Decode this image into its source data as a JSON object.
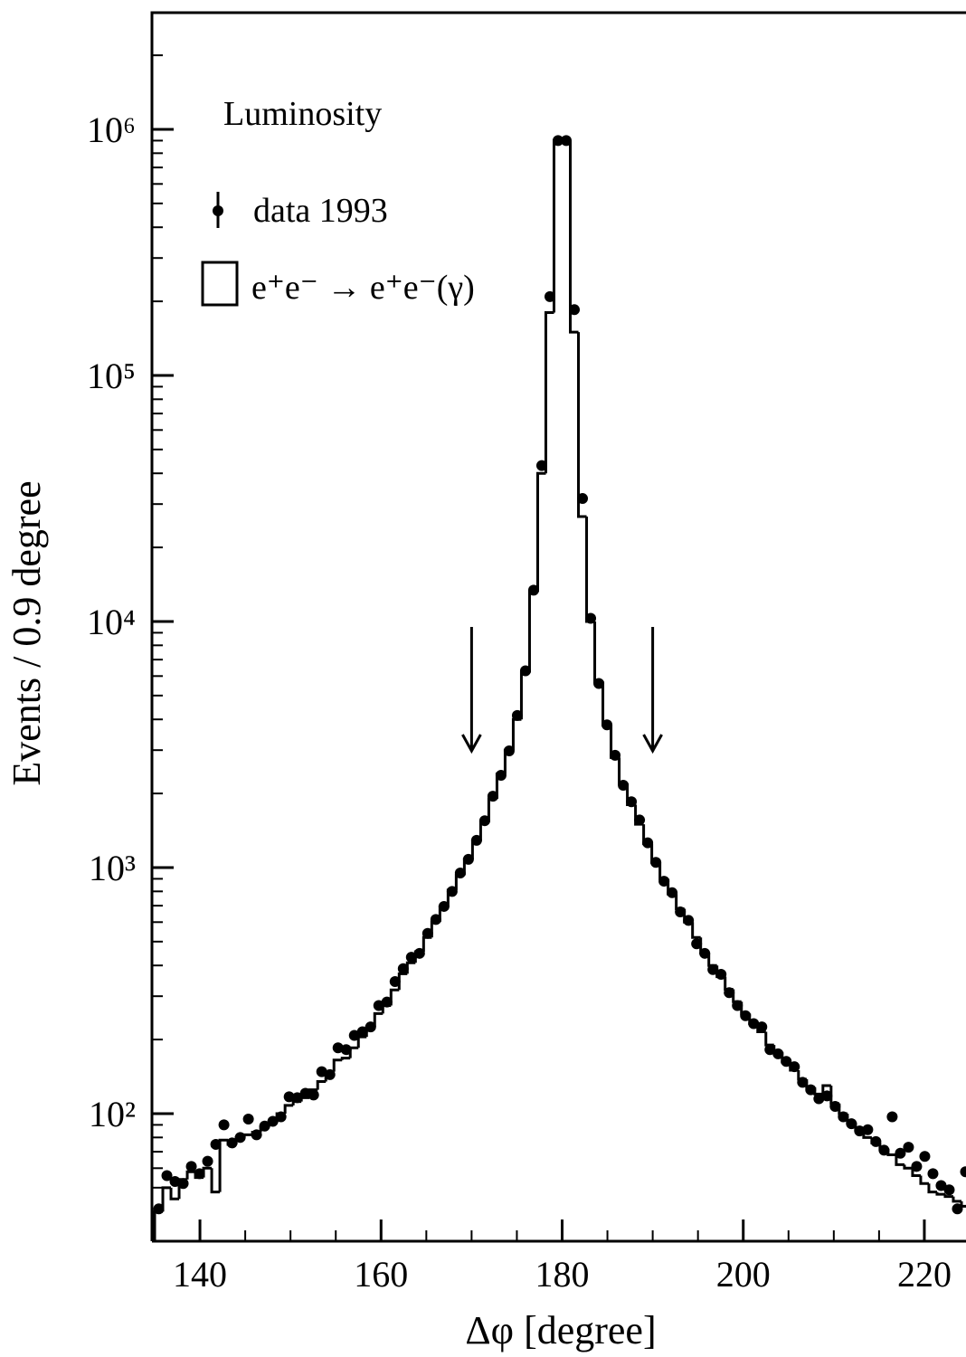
{
  "chart_data": {
    "type": "histogram",
    "y_label": "Events / 0.9 degree",
    "x_label": "Δφ [degree]",
    "legend_title": "Luminosity",
    "log_y": true,
    "xlim": [
      134.7,
      224.6
    ],
    "ylim": [
      30.3,
      2980000
    ],
    "xticks": [
      140,
      160,
      180,
      200,
      220
    ],
    "xminorticks": [
      135,
      145,
      150,
      155,
      165,
      170,
      175,
      185,
      190,
      195,
      205,
      210,
      215
    ],
    "yticks": [
      {
        "value": 100,
        "label": "10²"
      },
      {
        "value": 1000,
        "label": "10³"
      },
      {
        "value": 10000,
        "label": "10⁴"
      },
      {
        "value": 100000,
        "label": "10⁵"
      },
      {
        "value": 1000000,
        "label": "10⁶"
      }
    ],
    "yminorticks": [
      40,
      50,
      60,
      70,
      80,
      90,
      200,
      300,
      400,
      500,
      600,
      700,
      800,
      900,
      2000,
      3000,
      4000,
      5000,
      6000,
      7000,
      8000,
      9000,
      20000,
      30000,
      40000,
      50000,
      60000,
      70000,
      80000,
      90000,
      200000,
      300000,
      400000,
      500000,
      600000,
      700000,
      800000,
      900000,
      2000000
    ],
    "cut_arrows": [
      170,
      190
    ],
    "bins": [
      135,
      135.9,
      136.8,
      137.7,
      138.6,
      139.5,
      140.4,
      141.3,
      142.2,
      143.1,
      144,
      144.9,
      145.8,
      146.7,
      147.6,
      148.5,
      149.4,
      150.3,
      151.2,
      152.1,
      153,
      153.9,
      154.8,
      155.7,
      156.6,
      157.5,
      158.4,
      159.3,
      160.2,
      161.1,
      162,
      162.9,
      163.8,
      164.7,
      165.6,
      166.5,
      167.4,
      168.3,
      169.2,
      170.1,
      171,
      171.9,
      172.8,
      173.7,
      174.6,
      175.5,
      176.4,
      177.3,
      178.2,
      179.1,
      180,
      180.9,
      181.8,
      182.7,
      183.6,
      184.5,
      185.4,
      186.3,
      187.2,
      188.1,
      189,
      189.9,
      190.8,
      191.7,
      192.6,
      193.5,
      194.4,
      195.3,
      196.2,
      197.1,
      198,
      198.9,
      199.8,
      200.7,
      201.6,
      202.5,
      203.4,
      204.3,
      205.2,
      206.1,
      207,
      207.9,
      208.8,
      209.7,
      210.6,
      211.5,
      212.4,
      213.3,
      214.2,
      215.1,
      216,
      216.9,
      217.8,
      218.7,
      219.6,
      220.5,
      221.4,
      222.3,
      223.2,
      224.1,
      225
    ],
    "series": [
      {
        "name": "data 1993",
        "style": "points",
        "color": "#000000",
        "values": [
          41,
          56,
          53,
          52,
          61,
          57,
          64,
          75,
          90,
          76,
          80,
          95,
          82,
          89,
          93,
          97,
          117,
          116,
          121,
          119,
          148,
          144,
          185,
          182,
          208,
          215,
          225,
          275,
          284,
          344,
          388,
          432,
          448,
          540,
          615,
          695,
          800,
          950,
          1080,
          1290,
          1550,
          1950,
          2370,
          2980,
          4150,
          6300,
          13400,
          43000,
          209000,
          900000,
          900000,
          185000,
          31600,
          10300,
          5600,
          3800,
          2860,
          2160,
          1850,
          1560,
          1260,
          1050,
          880,
          790,
          660,
          610,
          490,
          448,
          385,
          368,
          310,
          275,
          250,
          232,
          225,
          182,
          175,
          163,
          155,
          134,
          125,
          115,
          118,
          107,
          97,
          91,
          85,
          86,
          77,
          71,
          97,
          69,
          73,
          61,
          67,
          57,
          51,
          49,
          41,
          58
        ]
      },
      {
        "name": "e⁺e⁻ → e⁺e⁻(γ)",
        "style": "step",
        "color": "#000000",
        "values": [
          40,
          50,
          45,
          54,
          58,
          55,
          60,
          48,
          78,
          75,
          80,
          82,
          84,
          88,
          92,
          100,
          108,
          112,
          116,
          125,
          135,
          148,
          165,
          168,
          185,
          205,
          225,
          255,
          275,
          318,
          370,
          410,
          455,
          520,
          600,
          690,
          810,
          930,
          1080,
          1280,
          1530,
          1900,
          2400,
          3000,
          4000,
          6200,
          13200,
          40000,
          180000,
          900000,
          900000,
          150000,
          26700,
          10000,
          5700,
          3800,
          2800,
          2200,
          1800,
          1500,
          1250,
          1050,
          900,
          780,
          680,
          600,
          520,
          450,
          400,
          360,
          320,
          285,
          255,
          232,
          215,
          190,
          178,
          162,
          150,
          138,
          128,
          120,
          130,
          110,
          100,
          92,
          86,
          80,
          76,
          72,
          68,
          62,
          60,
          56,
          52,
          48,
          47,
          46,
          44,
          42
        ]
      }
    ]
  }
}
